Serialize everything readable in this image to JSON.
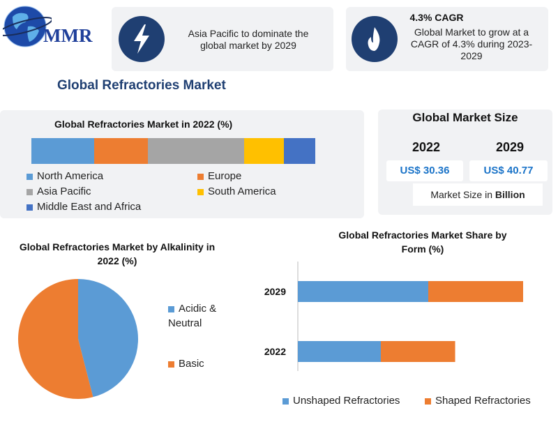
{
  "logo": {
    "text": "MMR"
  },
  "header": {
    "card1_text": "Asia Pacific to dominate the global market by 2029",
    "card2_title": "4.3% CAGR",
    "card2_text": "Global Market to grow at a CAGR of 4.3% during 2023-2029",
    "card1_icon": "lightning-icon",
    "card2_icon": "flame-icon"
  },
  "page_title": "Global Refractories Market",
  "market_size": {
    "title": "Global Market Size",
    "year1": "2022",
    "year2": "2029",
    "value1": "US$ 30.36",
    "value2": "US$ 40.77",
    "note_prefix": "Market Size in ",
    "note_bold": "Billion"
  },
  "colors": {
    "north_america": "#5b9bd5",
    "europe": "#ed7d31",
    "asia_pacific": "#a5a5a5",
    "south_america": "#ffc000",
    "mea": "#4472c4",
    "accent_navy": "#1f3f72",
    "value_blue": "#1a73c8"
  },
  "chart_data": [
    {
      "type": "bar",
      "title": "Global Refractories Market in 2022 (%)",
      "stacked": true,
      "orientation": "horizontal",
      "categories": [
        "2022"
      ],
      "series": [
        {
          "name": "North America",
          "values": [
            22
          ],
          "color": "#5b9bd5"
        },
        {
          "name": "Europe",
          "values": [
            19
          ],
          "color": "#ed7d31"
        },
        {
          "name": "Asia Pacific",
          "values": [
            34
          ],
          "color": "#a5a5a5"
        },
        {
          "name": "South America",
          "values": [
            14
          ],
          "color": "#ffc000"
        },
        {
          "name": "Middle East and Africa",
          "values": [
            11
          ],
          "color": "#4472c4"
        }
      ],
      "legend": "bottom"
    },
    {
      "type": "pie",
      "title": "Global Refractories Market by Alkalinity in 2022 (%)",
      "labels": [
        "Acidic & Neutral",
        "Basic"
      ],
      "values": [
        46,
        54
      ],
      "colors": [
        "#5b9bd5",
        "#ed7d31"
      ],
      "legend": "right"
    },
    {
      "type": "bar",
      "title": "Global Refractories Market Share by Form (%)",
      "stacked": true,
      "orientation": "horizontal",
      "categories": [
        "2029",
        "2022"
      ],
      "series": [
        {
          "name": "Unshaped Refractories",
          "values": [
            165,
            105
          ],
          "color": "#5b9bd5"
        },
        {
          "name": "Shaped Refractories",
          "values": [
            120,
            94
          ],
          "color": "#ed7d31"
        }
      ],
      "xlim": [
        0,
        300
      ],
      "legend": "bottom"
    }
  ]
}
